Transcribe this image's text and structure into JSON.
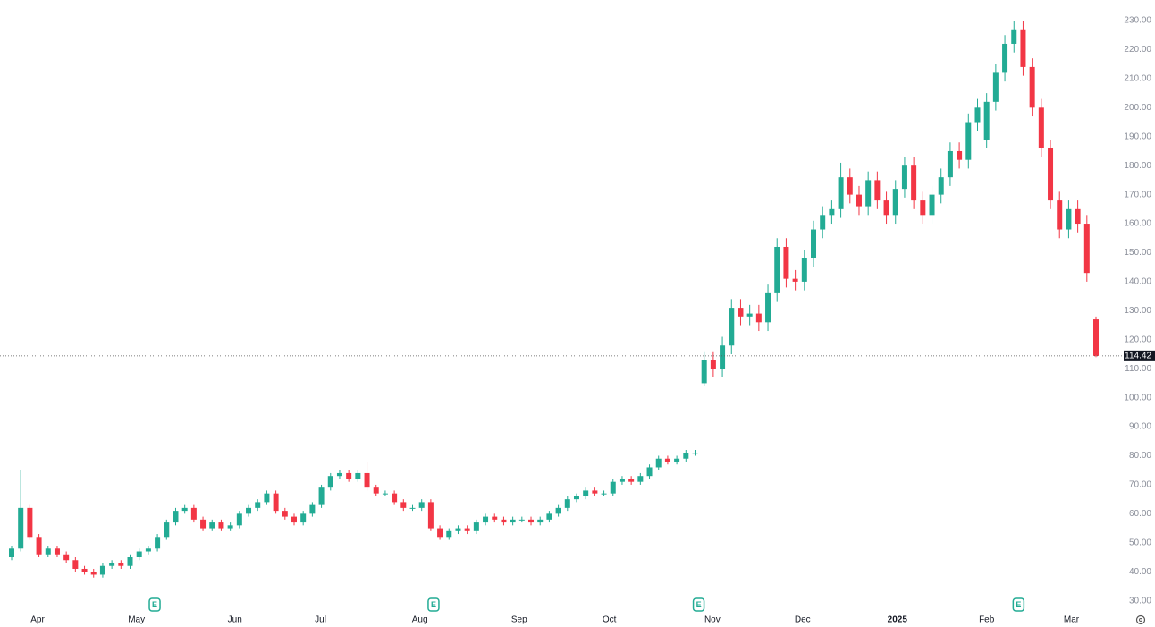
{
  "chart_data": {
    "type": "candlestick",
    "up_color": "#22ab94",
    "down_color": "#f23645",
    "open": [
      45,
      48,
      62,
      52,
      46,
      48,
      46,
      44,
      41,
      40,
      39,
      42,
      43,
      42,
      45,
      47,
      48,
      52,
      57,
      61,
      62,
      58,
      55,
      57,
      55,
      56,
      60,
      62,
      64,
      67,
      61,
      59,
      57,
      60,
      63,
      69,
      73,
      74,
      72,
      74,
      69,
      67,
      67,
      64,
      62,
      62,
      64,
      55,
      52,
      54,
      55,
      54,
      57,
      59,
      58,
      57,
      58,
      58,
      57,
      58,
      60,
      62,
      65,
      66,
      68,
      67,
      67,
      71,
      72,
      71,
      73,
      76,
      79,
      78,
      79,
      81,
      105,
      113,
      110,
      118,
      131,
      128,
      129,
      126,
      136,
      152,
      141,
      140,
      148,
      158,
      163,
      165,
      176,
      170,
      166,
      175,
      168,
      163,
      172,
      180,
      168,
      163,
      170,
      176,
      185,
      182,
      195,
      189,
      202,
      212,
      222,
      227,
      214,
      200,
      186,
      168,
      158,
      165,
      160,
      127
    ],
    "high": [
      49,
      75,
      63,
      53,
      49,
      49,
      47,
      45,
      42,
      41,
      43,
      44,
      44,
      46,
      48,
      49,
      53,
      58,
      62,
      63,
      63,
      59,
      58,
      58,
      57,
      61,
      63,
      65,
      68,
      68,
      62,
      60,
      61,
      64,
      70,
      74,
      75,
      75,
      75,
      78,
      70,
      68,
      68,
      65,
      63,
      65,
      65,
      56,
      55,
      56,
      56,
      58,
      60,
      60,
      59,
      59,
      59,
      59,
      59,
      61,
      63,
      66,
      67,
      69,
      69,
      68,
      72,
      73,
      73,
      74,
      77,
      80,
      80,
      80,
      82,
      82,
      116,
      116,
      121,
      134,
      134,
      132,
      132,
      139,
      155,
      155,
      144,
      151,
      161,
      166,
      168,
      181,
      179,
      173,
      178,
      178,
      171,
      175,
      183,
      183,
      171,
      173,
      179,
      188,
      188,
      198,
      203,
      205,
      215,
      225,
      230,
      230,
      217,
      203,
      189,
      171,
      168,
      168,
      163,
      128
    ],
    "low": [
      44,
      47,
      51,
      45,
      45,
      45,
      43,
      40,
      39,
      38,
      38,
      41,
      41,
      41,
      44,
      46,
      47,
      51,
      56,
      60,
      57,
      54,
      54,
      54,
      54,
      55,
      59,
      61,
      63,
      60,
      58,
      56,
      56,
      59,
      62,
      68,
      72,
      71,
      71,
      68,
      66,
      66,
      63,
      61,
      61,
      61,
      54,
      51,
      51,
      53,
      53,
      53,
      56,
      57,
      56,
      56,
      57,
      56,
      56,
      57,
      59,
      61,
      64,
      65,
      66,
      66,
      66,
      70,
      70,
      70,
      72,
      75,
      77,
      77,
      78,
      80,
      104,
      107,
      107,
      115,
      125,
      125,
      123,
      123,
      133,
      138,
      137,
      137,
      145,
      155,
      160,
      162,
      167,
      163,
      163,
      165,
      160,
      160,
      169,
      165,
      160,
      160,
      167,
      173,
      179,
      179,
      192,
      186,
      199,
      209,
      219,
      211,
      197,
      183,
      165,
      155,
      155,
      157,
      140,
      114
    ],
    "close": [
      48,
      62,
      52,
      46,
      48,
      46,
      44,
      41,
      40,
      39,
      42,
      43,
      42,
      45,
      47,
      48,
      52,
      57,
      61,
      62,
      58,
      55,
      57,
      55,
      56,
      60,
      62,
      64,
      67,
      61,
      59,
      57,
      60,
      63,
      69,
      73,
      74,
      72,
      74,
      69,
      67,
      67,
      64,
      62,
      62,
      64,
      55,
      52,
      54,
      55,
      54,
      57,
      59,
      58,
      57,
      58,
      58,
      57,
      58,
      60,
      62,
      65,
      66,
      68,
      67,
      67,
      71,
      72,
      71,
      73,
      76,
      79,
      78,
      79,
      81,
      81,
      113,
      110,
      118,
      131,
      128,
      129,
      126,
      136,
      152,
      141,
      140,
      148,
      158,
      163,
      165,
      176,
      170,
      166,
      175,
      168,
      163,
      172,
      180,
      168,
      163,
      170,
      176,
      185,
      182,
      195,
      200,
      202,
      212,
      222,
      227,
      214,
      200,
      186,
      168,
      158,
      165,
      160,
      143,
      114.42
    ],
    "last_price": 114.42,
    "ylim": [
      26.5,
      237.1
    ],
    "yticks": [
      {
        "value": 30,
        "label": "30.00"
      },
      {
        "value": 40,
        "label": "40.00"
      },
      {
        "value": 50,
        "label": "50.00"
      },
      {
        "value": 60,
        "label": "60.00"
      },
      {
        "value": 70,
        "label": "70.00"
      },
      {
        "value": 80,
        "label": "80.00"
      },
      {
        "value": 90,
        "label": "90.00"
      },
      {
        "value": 100,
        "label": "100.00"
      },
      {
        "value": 110,
        "label": "110.00"
      },
      {
        "value": 120,
        "label": "120.00"
      },
      {
        "value": 130,
        "label": "130.00"
      },
      {
        "value": 140,
        "label": "140.00"
      },
      {
        "value": 150,
        "label": "150.00"
      },
      {
        "value": 160,
        "label": "160.00"
      },
      {
        "value": 170,
        "label": "170.00"
      },
      {
        "value": 180,
        "label": "180.00"
      },
      {
        "value": 190,
        "label": "190.00"
      },
      {
        "value": 200,
        "label": "200.00"
      },
      {
        "value": 210,
        "label": "210.00"
      },
      {
        "value": 220,
        "label": "220.00"
      },
      {
        "value": 230,
        "label": "230.00"
      }
    ],
    "xticks": [
      {
        "value": 2.85,
        "label": "Apr"
      },
      {
        "value": 13.7,
        "label": "May"
      },
      {
        "value": 24.5,
        "label": "Jun"
      },
      {
        "value": 33.9,
        "label": "Jul"
      },
      {
        "value": 44.8,
        "label": "Aug"
      },
      {
        "value": 55.7,
        "label": "Sep"
      },
      {
        "value": 65.6,
        "label": "Oct"
      },
      {
        "value": 76.9,
        "label": "Nov"
      },
      {
        "value": 86.8,
        "label": "Dec"
      },
      {
        "value": 97.2,
        "label": "2025"
      },
      {
        "value": 107.0,
        "label": "Feb"
      },
      {
        "value": 116.3,
        "label": "Mar"
      }
    ],
    "earnings": [
      {
        "x": 15.7,
        "label": "E"
      },
      {
        "x": 46.3,
        "label": "E"
      },
      {
        "x": 75.4,
        "label": "E"
      },
      {
        "x": 110.5,
        "label": "E"
      }
    ],
    "grid": false
  }
}
